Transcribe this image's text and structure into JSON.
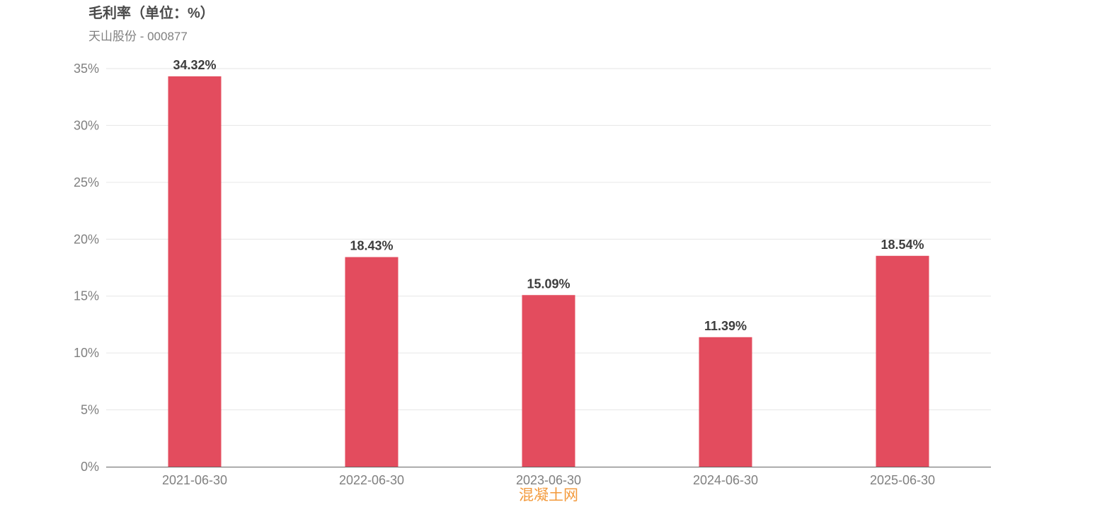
{
  "chart_data": {
    "type": "bar",
    "title": "毛利率（单位：%）",
    "subtitle": "天山股份 - 000877",
    "categories": [
      "2021-06-30",
      "2022-06-30",
      "2023-06-30",
      "2024-06-30",
      "2025-06-30"
    ],
    "values": [
      34.32,
      18.43,
      15.09,
      11.39,
      18.54
    ],
    "data_labels": [
      "34.32%",
      "18.43%",
      "15.09%",
      "11.39%",
      "18.54%"
    ],
    "y_ticks": [
      0,
      5,
      10,
      15,
      20,
      25,
      30,
      35
    ],
    "y_tick_labels": [
      "0%",
      "5%",
      "10%",
      "15%",
      "20%",
      "25%",
      "30%",
      "35%"
    ],
    "ylim": [
      0,
      35
    ],
    "grid": true,
    "legend": "none",
    "bar_color": "#e34c5e",
    "grid_color": "#e6e6e6",
    "axis_color": "#666666"
  },
  "watermark": "混凝土网"
}
